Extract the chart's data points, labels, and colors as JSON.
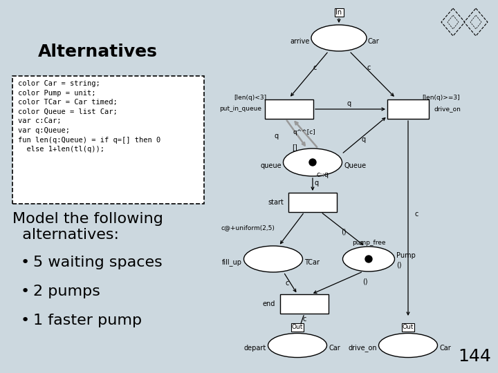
{
  "bg_color": "#ccd8df",
  "title": "Alternatives",
  "title_fontsize": 18,
  "code_box_text": "color Car = string;\ncolor Pump = unit;\ncolor TCar = Car timed;\ncolor Queue = list Car;\nvar c:Car;\nvar q:Queue;\nfun len(q:Queue) = if q=[] then 0\n  else 1+len(tl(q));",
  "bullet_items": [
    "5 waiting spaces",
    "2 pumps",
    "1 faster pump"
  ],
  "body_fontsize": 16,
  "page_number": "144",
  "white": "#ffffff",
  "black": "#000000"
}
